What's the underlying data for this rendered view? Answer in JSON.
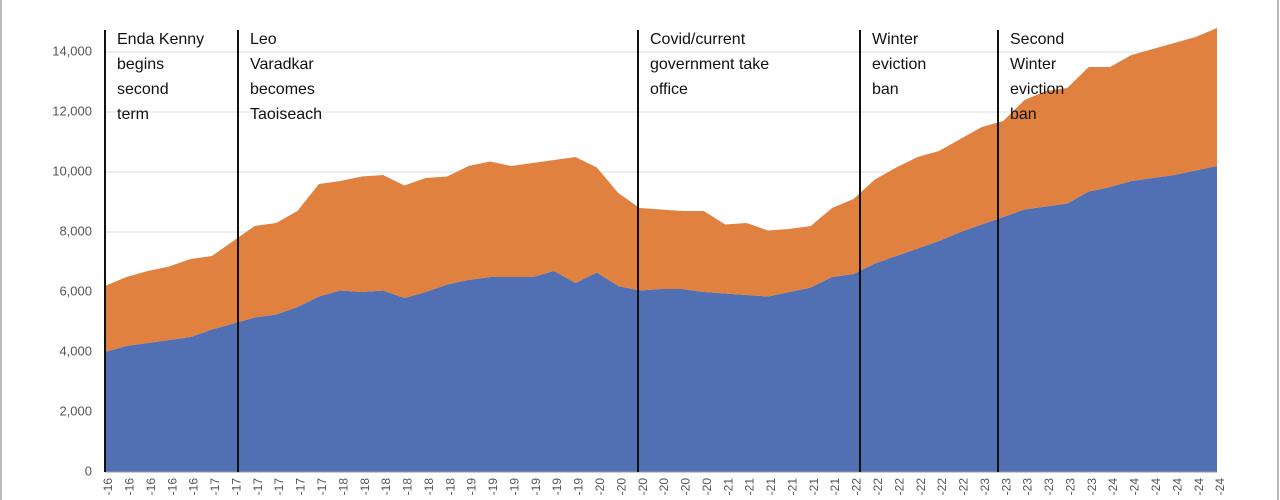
{
  "chart_data": {
    "type": "stacked_area",
    "categories": [
      "-16",
      "-16",
      "-16",
      "-16",
      "-16",
      "-17",
      "-17",
      "-17",
      "-17",
      "-17",
      "-17",
      "-18",
      "-18",
      "-18",
      "-18",
      "-18",
      "-18",
      "-19",
      "-19",
      "-19",
      "-19",
      "-19",
      "-19",
      "-20",
      "-20",
      "-20",
      "-20",
      "-20",
      "-20",
      "-21",
      "-21",
      "-21",
      "-21",
      "-21",
      "-21",
      "-22",
      "-22",
      "-22",
      "-22",
      "-22",
      "-22",
      "-23",
      "-23",
      "-23",
      "-23",
      "-23",
      "-23",
      "-24",
      "-24",
      "-24",
      "-24",
      "-24",
      "-24"
    ],
    "series": [
      {
        "color": "#5170b4",
        "values": [
          4000,
          4200,
          4300,
          4400,
          4500,
          4750,
          4950,
          5150,
          5250,
          5500,
          5850,
          6050,
          6000,
          6050,
          5800,
          6000,
          6250,
          6400,
          6500,
          6500,
          6500,
          6700,
          6300,
          6650,
          6200,
          6050,
          6100,
          6100,
          6000,
          5950,
          5900,
          5850,
          6000,
          6150,
          6500,
          6600,
          6950,
          7200,
          7450,
          7700,
          8000,
          8250,
          8500,
          8750,
          8850,
          8950,
          9350,
          9500,
          9700,
          9800,
          9900,
          10050,
          10200
        ]
      },
      {
        "color": "#e08140",
        "values": [
          2200,
          2300,
          2400,
          2450,
          2600,
          2450,
          2750,
          3050,
          3050,
          3200,
          3750,
          3650,
          3850,
          3850,
          3750,
          3800,
          3600,
          3800,
          3850,
          3700,
          3800,
          3700,
          4200,
          3500,
          3100,
          2750,
          2650,
          2600,
          2700,
          2300,
          2400,
          2200,
          2100,
          2050,
          2300,
          2500,
          2800,
          2950,
          3050,
          3000,
          3100,
          3250,
          3200,
          3650,
          3850,
          3850,
          4150,
          4000,
          4200,
          4300,
          4400,
          4450,
          4600
        ]
      }
    ],
    "ylim": [
      0,
      15000
    ],
    "yticks": [
      0,
      {
        "value": 2000,
        "label": "2,000"
      },
      {
        "value": 4000,
        "label": "4,000"
      },
      {
        "value": 6000,
        "label": "6,000"
      },
      {
        "value": 8000,
        "label": "8,000"
      },
      {
        "value": 10000,
        "label": "10,000"
      },
      {
        "value": 12000,
        "label": "12,000"
      },
      {
        "value": 14000,
        "label": "14,000"
      }
    ],
    "grid": true,
    "annotations": [
      [
        "Enda Kenny",
        "begins",
        "second",
        "term"
      ],
      [
        "Leo",
        "Varadkar",
        "becomes",
        "Taoiseach"
      ],
      [
        "Covid/current",
        "government take",
        "office"
      ],
      [
        "Winter",
        "eviction",
        "ban"
      ],
      [
        "Second",
        "Winter",
        "eviction",
        "ban"
      ]
    ]
  }
}
